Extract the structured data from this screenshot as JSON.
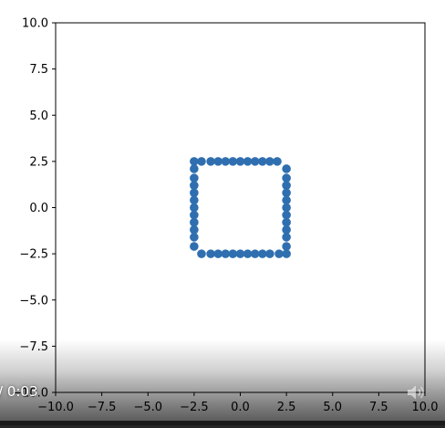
{
  "player": {
    "time_display": "/ 0:03",
    "progress": 1.0
  },
  "icons": {
    "volume": "volume-icon"
  },
  "colors": {
    "marker": "#2f6fb0",
    "axes": "#000000",
    "background": "#ffffff"
  },
  "chart_data": {
    "type": "scatter",
    "title": "",
    "xlabel": "",
    "ylabel": "",
    "xlim": [
      -10,
      10
    ],
    "ylim": [
      -10,
      10
    ],
    "x_ticks": [
      "−10.0",
      "−7.5",
      "−5.0",
      "−2.5",
      "0.0",
      "2.5",
      "5.0",
      "7.5",
      "10.0"
    ],
    "y_ticks": [
      "10.0",
      "7.5",
      "5.0",
      "2.5",
      "0.0",
      "−2.5",
      "−5.0",
      "−7.5",
      "−10.0"
    ],
    "grid": false,
    "series": [
      {
        "points": [
          [
            -2.5,
            2.5
          ],
          [
            -2.1,
            2.5
          ],
          [
            -1.6,
            2.5
          ],
          [
            -1.2,
            2.5
          ],
          [
            -0.8,
            2.5
          ],
          [
            -0.4,
            2.5
          ],
          [
            0.0,
            2.5
          ],
          [
            0.4,
            2.5
          ],
          [
            0.8,
            2.5
          ],
          [
            1.2,
            2.5
          ],
          [
            1.6,
            2.5
          ],
          [
            2.0,
            2.5
          ],
          [
            2.5,
            2.1
          ],
          [
            2.5,
            1.6
          ],
          [
            2.5,
            1.2
          ],
          [
            2.5,
            0.8
          ],
          [
            2.5,
            0.4
          ],
          [
            2.5,
            0.0
          ],
          [
            2.5,
            -0.4
          ],
          [
            2.5,
            -0.8
          ],
          [
            2.5,
            -1.2
          ],
          [
            2.5,
            -1.6
          ],
          [
            2.5,
            -2.1
          ],
          [
            2.5,
            -2.5
          ],
          [
            2.1,
            -2.5
          ],
          [
            1.6,
            -2.5
          ],
          [
            1.2,
            -2.5
          ],
          [
            0.8,
            -2.5
          ],
          [
            0.4,
            -2.5
          ],
          [
            0.0,
            -2.5
          ],
          [
            -0.4,
            -2.5
          ],
          [
            -0.8,
            -2.5
          ],
          [
            -1.2,
            -2.5
          ],
          [
            -1.6,
            -2.5
          ],
          [
            -2.1,
            -2.5
          ],
          [
            -2.5,
            -2.1
          ],
          [
            -2.5,
            -1.6
          ],
          [
            -2.5,
            -1.2
          ],
          [
            -2.5,
            -0.8
          ],
          [
            -2.5,
            -0.4
          ],
          [
            -2.5,
            0.0
          ],
          [
            -2.5,
            0.4
          ],
          [
            -2.5,
            0.8
          ],
          [
            -2.5,
            1.2
          ],
          [
            -2.5,
            1.6
          ],
          [
            -2.5,
            2.1
          ]
        ]
      }
    ]
  }
}
